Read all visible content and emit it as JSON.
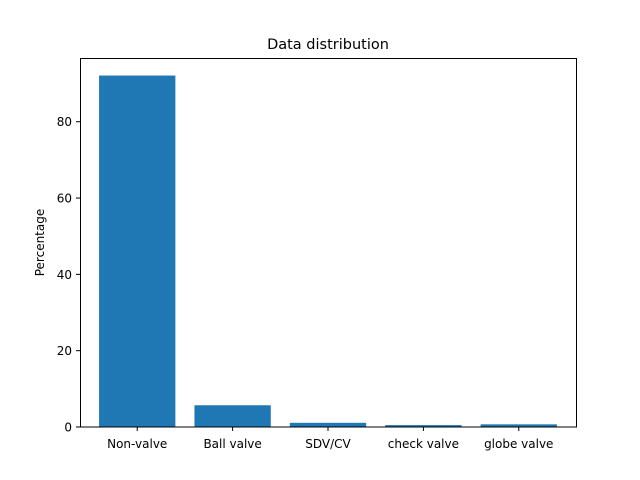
{
  "chart_data": {
    "type": "bar",
    "title": "Data distribution",
    "xlabel": "",
    "ylabel": "Percentage",
    "categories": [
      "Non-valve",
      "Ball valve",
      "SDV/CV",
      "check valve",
      "globe valve"
    ],
    "values": [
      92.1,
      5.7,
      1.1,
      0.5,
      0.7
    ],
    "ylim": [
      0,
      96.7
    ],
    "yticks": [
      0,
      20,
      40,
      60,
      80
    ],
    "grid": false,
    "bar_color": "#1f77b4"
  }
}
